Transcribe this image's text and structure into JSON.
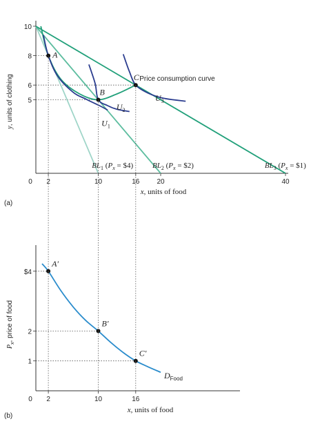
{
  "chart_data": [
    {
      "type": "line",
      "panel_label": "(a)",
      "xlabel_var": "x",
      "xlabel_rest": ", units of food",
      "ylabel_var": "y",
      "ylabel_rest": ", units of clothing",
      "xlim": [
        0,
        45
      ],
      "ylim": [
        0,
        10.5
      ],
      "xticks": [
        {
          "value": 0,
          "label": "0"
        },
        {
          "value": 2,
          "label": "2"
        },
        {
          "value": 10,
          "label": "10"
        },
        {
          "value": 16,
          "label": "16"
        },
        {
          "value": 20,
          "label": "20"
        },
        {
          "value": 40,
          "label": "40"
        }
      ],
      "yticks": [
        {
          "value": 5,
          "label": "5"
        },
        {
          "value": 6,
          "label": "6"
        },
        {
          "value": 8,
          "label": "8"
        },
        {
          "value": 10,
          "label": "10"
        }
      ],
      "budget_lines": [
        {
          "name": "BL1",
          "sub": "1",
          "price_text": "= $4)",
          "x_intercept": 10,
          "y_intercept": 10,
          "color": "#9fd5c8"
        },
        {
          "name": "BL2",
          "sub": "2",
          "price_text": "= $2)",
          "x_intercept": 20,
          "y_intercept": 10,
          "color": "#5dbd9f"
        },
        {
          "name": "BL3",
          "sub": "3",
          "price_text": "= $1)",
          "x_intercept": 40,
          "y_intercept": 10,
          "color": "#21a07a"
        }
      ],
      "points": [
        {
          "label": "A",
          "x": 2,
          "y": 8
        },
        {
          "label": "B",
          "x": 10,
          "y": 5
        },
        {
          "label": "C",
          "x": 16,
          "y": 6
        }
      ],
      "indifference_curves": [
        {
          "label": "U",
          "sub": "1",
          "color": "#2b3d8f",
          "points": [
            [
              1.2,
              9.4
            ],
            [
              2,
              8
            ],
            [
              3.5,
              6.6
            ],
            [
              6,
              5.5
            ],
            [
              8,
              5.05
            ],
            [
              10.2,
              4.6
            ],
            [
              11.5,
              4.3
            ]
          ]
        },
        {
          "label": "U",
          "sub": "2",
          "color": "#2b3d8f",
          "points": [
            [
              8.5,
              7.4
            ],
            [
              9.5,
              6.1
            ],
            [
              10,
              5
            ],
            [
              11.5,
              4.6
            ],
            [
              13,
              4.35
            ],
            [
              15,
              4.2
            ]
          ]
        },
        {
          "label": "U",
          "sub": "3",
          "color": "#2b3d8f",
          "points": [
            [
              14,
              8.1
            ],
            [
              15,
              6.9
            ],
            [
              16,
              6
            ],
            [
              18,
              5.45
            ],
            [
              20.5,
              5.1
            ],
            [
              24,
              4.9
            ]
          ]
        }
      ],
      "price_consumption_curve": {
        "label": "Price consumption curve",
        "color": "#21a07a",
        "points": [
          [
            0.8,
            10
          ],
          [
            2,
            8
          ],
          [
            4,
            6.4
          ],
          [
            7,
            5.4
          ],
          [
            10,
            5
          ],
          [
            13,
            5.4
          ],
          [
            16,
            6
          ]
        ]
      }
    },
    {
      "type": "line",
      "panel_label": "(b)",
      "xlabel_var": "x",
      "xlabel_rest": ", units of food",
      "ylabel_var": "P",
      "ylabel_sub": "x",
      "ylabel_rest": ", price of food",
      "xlim": [
        0,
        45
      ],
      "ylim": [
        0,
        4.5
      ],
      "xticks": [
        {
          "value": 0,
          "label": "0"
        },
        {
          "value": 2,
          "label": "2"
        },
        {
          "value": 10,
          "label": "10"
        },
        {
          "value": 16,
          "label": "16"
        }
      ],
      "yticks": [
        {
          "value": 1,
          "label": "1"
        },
        {
          "value": 2,
          "label": "2"
        },
        {
          "value": 4,
          "label": "$4"
        }
      ],
      "points": [
        {
          "label": "A′",
          "x": 2,
          "y": 4
        },
        {
          "label": "B′",
          "x": 10,
          "y": 2
        },
        {
          "label": "C′",
          "x": 16,
          "y": 1
        }
      ],
      "demand_curve": {
        "label": "D",
        "sub": "Food",
        "color": "#2a8ccc",
        "points": [
          [
            1,
            4.25
          ],
          [
            2,
            4
          ],
          [
            4,
            3.35
          ],
          [
            6,
            2.8
          ],
          [
            8,
            2.35
          ],
          [
            10,
            2
          ],
          [
            12,
            1.62
          ],
          [
            14,
            1.28
          ],
          [
            16,
            1
          ],
          [
            18,
            0.8
          ],
          [
            20,
            0.62
          ]
        ]
      }
    }
  ]
}
